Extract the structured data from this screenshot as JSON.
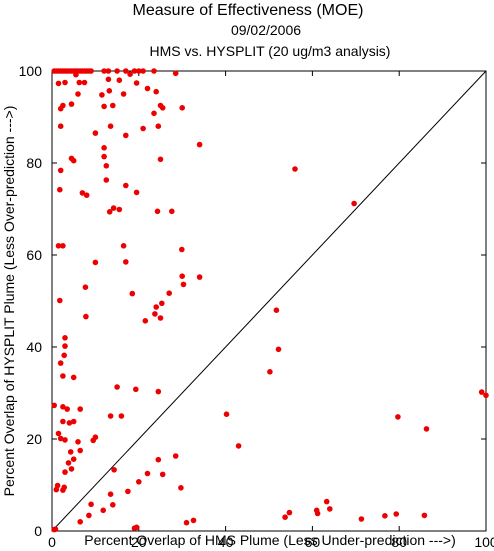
{
  "chart_data": {
    "type": "scatter",
    "title": "Measure of Effectiveness (MOE)",
    "subtitle": "09/02/2006",
    "subtitle2": "HMS vs. HYSPLIT  (20 ug/m3 analysis)",
    "xlabel": "Percent Overlap of HMS Plume (Less Under-prediction --->)",
    "ylabel": "Percent Overlap of HYSPLIT Plume (Less Over-prediction --->)",
    "xlim": [
      0,
      100
    ],
    "ylim": [
      0,
      100
    ],
    "xticks": [
      "0",
      "20",
      "40",
      "60",
      "80",
      "100"
    ],
    "yticks": [
      "0",
      "20",
      "40",
      "60",
      "80",
      "100"
    ],
    "grid": false,
    "reference_line": "diagonal y = x",
    "colors": {
      "points": "#ee0000",
      "axes": "#000000",
      "line": "#000000"
    },
    "points": [
      [
        0.5,
        100
      ],
      [
        1,
        100
      ],
      [
        1.5,
        100
      ],
      [
        2,
        100
      ],
      [
        2.5,
        100
      ],
      [
        3,
        100
      ],
      [
        3.5,
        100
      ],
      [
        4,
        100
      ],
      [
        4.5,
        100
      ],
      [
        5,
        100
      ],
      [
        5.5,
        100
      ],
      [
        6,
        100
      ],
      [
        6.5,
        100
      ],
      [
        7,
        100
      ],
      [
        7.5,
        100
      ],
      [
        8,
        100
      ],
      [
        8.5,
        100
      ],
      [
        9,
        100
      ],
      [
        12,
        100
      ],
      [
        13,
        100
      ],
      [
        15,
        100
      ],
      [
        17,
        100
      ],
      [
        19,
        100
      ],
      [
        20,
        100
      ],
      [
        21,
        100
      ],
      [
        23.5,
        100
      ],
      [
        1.5,
        97.3
      ],
      [
        2,
        91.8
      ],
      [
        2.5,
        92.5
      ],
      [
        3,
        97.5
      ],
      [
        4.5,
        92.8
      ],
      [
        4.5,
        81
      ],
      [
        5.5,
        99.2
      ],
      [
        6,
        95
      ],
      [
        6.3,
        97.5
      ],
      [
        7.5,
        97.5
      ],
      [
        10,
        86.5
      ],
      [
        11.5,
        94.8
      ],
      [
        12,
        92.3
      ],
      [
        12,
        83.3
      ],
      [
        12,
        81.4
      ],
      [
        12.5,
        79.4
      ],
      [
        13,
        98.2
      ],
      [
        13.2,
        95.7
      ],
      [
        13.5,
        88
      ],
      [
        14,
        92.5
      ],
      [
        15.5,
        98
      ],
      [
        16.5,
        95
      ],
      [
        17,
        86
      ],
      [
        18,
        99.3
      ],
      [
        19.5,
        97.4
      ],
      [
        21,
        87.5
      ],
      [
        22,
        96.2
      ],
      [
        23.5,
        90.8
      ],
      [
        24.5,
        88
      ],
      [
        24,
        95.5
      ],
      [
        25,
        92.5
      ],
      [
        25,
        80.8
      ],
      [
        25.5,
        92
      ],
      [
        28.5,
        99.5
      ],
      [
        30,
        92
      ],
      [
        2,
        88
      ],
      [
        2,
        78.4
      ],
      [
        1.8,
        74.2
      ],
      [
        5,
        80.5
      ],
      [
        7,
        73.5
      ],
      [
        8,
        73
      ],
      [
        12.5,
        76.3
      ],
      [
        13.3,
        69.4
      ],
      [
        14.2,
        70.2
      ],
      [
        15.5,
        69.9
      ],
      [
        17,
        75.1
      ],
      [
        24.3,
        69.5
      ],
      [
        27.6,
        69.5
      ],
      [
        34,
        84
      ],
      [
        56,
        78.7
      ],
      [
        69.6,
        71.2
      ],
      [
        1.5,
        62
      ],
      [
        2.5,
        62
      ],
      [
        10,
        58.4
      ],
      [
        16.5,
        62
      ],
      [
        17,
        58.5
      ],
      [
        19.5,
        73.6
      ],
      [
        29.9,
        61.2
      ],
      [
        30,
        55.4
      ],
      [
        30.3,
        53.6
      ],
      [
        34,
        55.2
      ],
      [
        1.8,
        50.1
      ],
      [
        7.7,
        53
      ],
      [
        7.8,
        46.6
      ],
      [
        18.5,
        51.6
      ],
      [
        21.5,
        45.7
      ],
      [
        23.7,
        47.2
      ],
      [
        24,
        48.7
      ],
      [
        25,
        46.3
      ],
      [
        25.3,
        49.5
      ],
      [
        27,
        51.7
      ],
      [
        2,
        36.5
      ],
      [
        3,
        40.2
      ],
      [
        3,
        42
      ],
      [
        5,
        33.4
      ],
      [
        2.8,
        38.2
      ],
      [
        2.5,
        33.7
      ],
      [
        15,
        31.3
      ],
      [
        19.3,
        30.8
      ],
      [
        24.5,
        30.3
      ],
      [
        51.7,
        48
      ],
      [
        52.2,
        39.5
      ],
      [
        50.2,
        34.6
      ],
      [
        40.2,
        25.4
      ],
      [
        43,
        18.5
      ],
      [
        99,
        30.2
      ],
      [
        100,
        29.5
      ],
      [
        79.7,
        24.8
      ],
      [
        86.3,
        22.2
      ],
      [
        0.5,
        27.3
      ],
      [
        2.5,
        27
      ],
      [
        3.5,
        26.5
      ],
      [
        6.5,
        26.5
      ],
      [
        4,
        23.5
      ],
      [
        5,
        23.8
      ],
      [
        1.5,
        21.2
      ],
      [
        2,
        20.1
      ],
      [
        2.5,
        23.8
      ],
      [
        3,
        19.8
      ],
      [
        9.5,
        19.7
      ],
      [
        10,
        20.4
      ],
      [
        13.5,
        25
      ],
      [
        16,
        25
      ],
      [
        4.3,
        17.2
      ],
      [
        6,
        19.4
      ],
      [
        6.5,
        17.5
      ],
      [
        3.8,
        14.8
      ],
      [
        4.5,
        13.5
      ],
      [
        5,
        15.6
      ],
      [
        3,
        12.8
      ],
      [
        1.3,
        9.9
      ],
      [
        1,
        9
      ],
      [
        2.5,
        8.9
      ],
      [
        2.8,
        9.5
      ],
      [
        14.3,
        13.3
      ],
      [
        22,
        12.5
      ],
      [
        24.5,
        15.5
      ],
      [
        25.5,
        12.3
      ],
      [
        28.5,
        16.3
      ],
      [
        29.7,
        9.4
      ],
      [
        9,
        5.8
      ],
      [
        13.5,
        8
      ],
      [
        17.5,
        8.6
      ],
      [
        20,
        10.7
      ],
      [
        8.5,
        3.4
      ],
      [
        6.5,
        2
      ],
      [
        11.8,
        4.5
      ],
      [
        14,
        5.7
      ],
      [
        19.5,
        0.8
      ],
      [
        19,
        0.6
      ],
      [
        31,
        1.8
      ],
      [
        32.6,
        2.3
      ],
      [
        0.8,
        0.4
      ],
      [
        0.5,
        0.3
      ],
      [
        53.7,
        3
      ],
      [
        54.7,
        4
      ],
      [
        61,
        4.5
      ],
      [
        61.2,
        3.8
      ],
      [
        63.3,
        6.4
      ],
      [
        64,
        4.8
      ],
      [
        71.3,
        2.6
      ],
      [
        76.7,
        3.3
      ],
      [
        79.3,
        3.7
      ],
      [
        85.8,
        3.4
      ]
    ]
  }
}
